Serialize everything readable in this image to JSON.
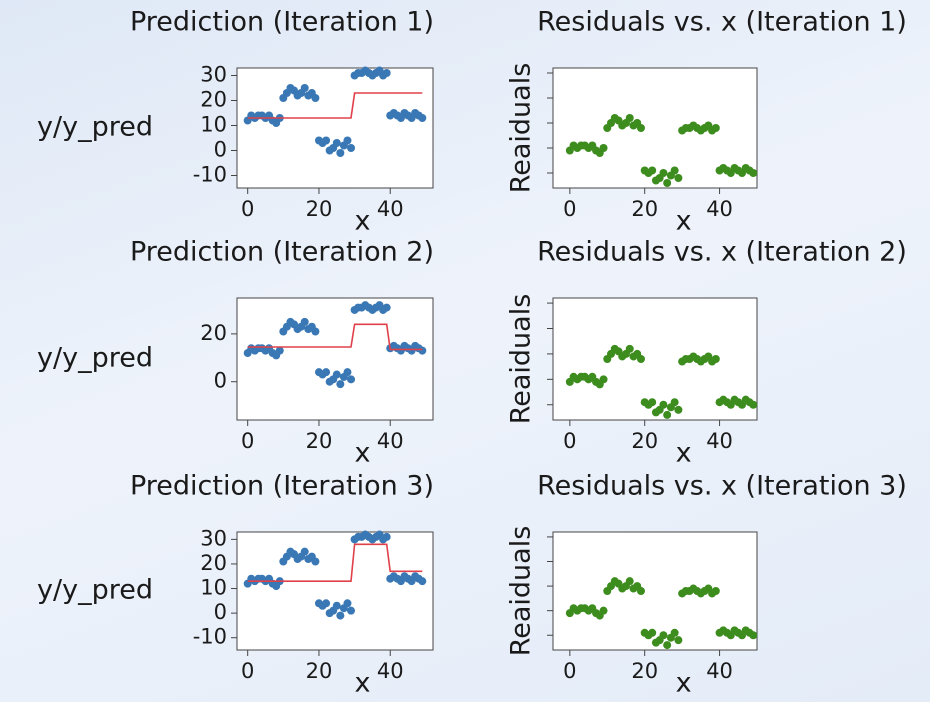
{
  "chart_data": [
    {
      "type": "scatter",
      "title": "Prediction (Iteration 1)",
      "ylabel": "y/y_pred",
      "xlabel": "x",
      "x": [
        0,
        1,
        2,
        3,
        4,
        5,
        6,
        7,
        8,
        9,
        10,
        11,
        12,
        13,
        14,
        15,
        16,
        17,
        18,
        19,
        20,
        21,
        22,
        23,
        24,
        25,
        26,
        27,
        28,
        29,
        30,
        31,
        32,
        33,
        34,
        35,
        36,
        37,
        38,
        39,
        40,
        41,
        42,
        43,
        44,
        45,
        46,
        47,
        48,
        49
      ],
      "series": [
        {
          "style": "points",
          "color": "#3a78b5",
          "values": [
            12,
            14,
            13,
            14,
            14,
            13,
            14,
            12,
            11,
            13,
            21,
            23,
            25,
            24,
            22,
            23,
            25,
            22,
            23,
            21,
            4,
            3,
            4,
            0,
            1,
            3,
            -1,
            2,
            4,
            1,
            30,
            31,
            31,
            32,
            31,
            30,
            31,
            32,
            30,
            31,
            14,
            15,
            14,
            13,
            15,
            14,
            13,
            15,
            14,
            13
          ]
        },
        {
          "style": "line",
          "color": "#e0404a",
          "values": [
            13,
            13,
            13,
            13,
            13,
            13,
            13,
            13,
            13,
            13,
            13,
            13,
            13,
            13,
            13,
            13,
            13,
            13,
            13,
            13,
            13,
            13,
            13,
            13,
            13,
            13,
            13,
            13,
            13,
            13,
            23,
            23,
            23,
            23,
            23,
            23,
            23,
            23,
            23,
            23,
            23,
            23,
            23,
            23,
            23,
            23,
            23,
            23,
            23,
            23
          ]
        }
      ],
      "xlim": [
        -3,
        52
      ],
      "xticks": [
        0,
        20,
        40
      ],
      "ylim": [
        -15,
        33
      ],
      "yticks": [
        -10,
        0,
        10,
        20,
        30
      ],
      "ytick_labels": true,
      "grid": false
    },
    {
      "type": "scatter",
      "title": "Residuals vs. x (Iteration 1)",
      "ylabel": "Reaiduals",
      "xlabel": "x",
      "x": [
        0,
        1,
        2,
        3,
        4,
        5,
        6,
        7,
        8,
        9,
        10,
        11,
        12,
        13,
        14,
        15,
        16,
        17,
        18,
        19,
        20,
        21,
        22,
        23,
        24,
        25,
        26,
        27,
        28,
        29,
        30,
        31,
        32,
        33,
        34,
        35,
        36,
        37,
        38,
        39,
        40,
        41,
        42,
        43,
        44,
        45,
        46,
        47,
        48,
        49
      ],
      "series": [
        {
          "style": "points",
          "color": "#3c8c1e",
          "values": [
            -1,
            1,
            0,
            1,
            1,
            0,
            1,
            -1,
            -2,
            0,
            8,
            10,
            12,
            11,
            9,
            10,
            12,
            9,
            10,
            8,
            -9,
            -10,
            -9,
            -13,
            -12,
            -10,
            -14,
            -11,
            -9,
            -12,
            7,
            8,
            8,
            9,
            8,
            7,
            8,
            9,
            7,
            8,
            -9,
            -8,
            -9,
            -10,
            -8,
            -9,
            -10,
            -8,
            -9,
            -10
          ]
        }
      ],
      "xlim": [
        -4.5,
        50
      ],
      "xticks": [
        0,
        20,
        40
      ],
      "ylim": [
        -16,
        32
      ],
      "yticks": [
        -10,
        0,
        10,
        20,
        30
      ],
      "ytick_labels": false,
      "grid": false
    },
    {
      "type": "scatter",
      "title": "Prediction (Iteration 2)",
      "ylabel": "y/y_pred",
      "xlabel": "x",
      "x": [
        0,
        1,
        2,
        3,
        4,
        5,
        6,
        7,
        8,
        9,
        10,
        11,
        12,
        13,
        14,
        15,
        16,
        17,
        18,
        19,
        20,
        21,
        22,
        23,
        24,
        25,
        26,
        27,
        28,
        29,
        30,
        31,
        32,
        33,
        34,
        35,
        36,
        37,
        38,
        39,
        40,
        41,
        42,
        43,
        44,
        45,
        46,
        47,
        48,
        49
      ],
      "series": [
        {
          "style": "points",
          "color": "#3a78b5",
          "values": [
            12,
            14,
            13,
            14,
            14,
            13,
            14,
            12,
            11,
            13,
            21,
            23,
            25,
            24,
            22,
            23,
            25,
            22,
            23,
            21,
            4,
            3,
            4,
            0,
            1,
            3,
            -1,
            2,
            4,
            1,
            30,
            31,
            31,
            32,
            31,
            30,
            31,
            32,
            30,
            31,
            14,
            15,
            14,
            13,
            15,
            14,
            13,
            15,
            14,
            13
          ]
        },
        {
          "style": "line",
          "color": "#e0404a",
          "values": [
            14.5,
            14.5,
            14.5,
            14.5,
            14.5,
            14.5,
            14.5,
            14.5,
            14.5,
            14.5,
            14.5,
            14.5,
            14.5,
            14.5,
            14.5,
            14.5,
            14.5,
            14.5,
            14.5,
            14.5,
            14.5,
            14.5,
            14.5,
            14.5,
            14.5,
            14.5,
            14.5,
            14.5,
            14.5,
            14.5,
            24,
            24,
            24,
            24,
            24,
            24,
            24,
            24,
            24,
            24,
            13.5,
            13.5,
            13.5,
            13.5,
            13.5,
            13.5,
            13.5,
            13.5,
            13.5,
            13.5
          ]
        }
      ],
      "xlim": [
        -3,
        52
      ],
      "xticks": [
        0,
        20,
        40
      ],
      "ylim": [
        -16,
        35
      ],
      "yticks": [
        0,
        20
      ],
      "ytick_labels": true,
      "grid": false
    },
    {
      "type": "scatter",
      "title": "Residuals vs. x (Iteration 2)",
      "ylabel": "Reaiduals",
      "xlabel": "x",
      "x": [
        0,
        1,
        2,
        3,
        4,
        5,
        6,
        7,
        8,
        9,
        10,
        11,
        12,
        13,
        14,
        15,
        16,
        17,
        18,
        19,
        20,
        21,
        22,
        23,
        24,
        25,
        26,
        27,
        28,
        29,
        30,
        31,
        32,
        33,
        34,
        35,
        36,
        37,
        38,
        39,
        40,
        41,
        42,
        43,
        44,
        45,
        46,
        47,
        48,
        49
      ],
      "series": [
        {
          "style": "points",
          "color": "#3c8c1e",
          "values": [
            -1,
            1,
            0,
            1,
            1,
            0,
            1,
            -1,
            -2,
            0,
            8,
            10,
            12,
            11,
            9,
            10,
            12,
            9,
            10,
            8,
            -9,
            -10,
            -9,
            -13,
            -12,
            -10,
            -14,
            -11,
            -9,
            -12,
            7,
            8,
            8,
            9,
            8,
            7,
            8,
            9,
            7,
            8,
            -9,
            -8,
            -9,
            -10,
            -8,
            -9,
            -10,
            -8,
            -9,
            -10
          ]
        }
      ],
      "xlim": [
        -4.5,
        50
      ],
      "xticks": [
        0,
        20,
        40
      ],
      "ylim": [
        -16,
        32
      ],
      "yticks": [
        -10,
        0,
        10,
        20,
        30
      ],
      "ytick_labels": false,
      "grid": false
    },
    {
      "type": "scatter",
      "title": "Prediction (Iteration 3)",
      "ylabel": "y/y_pred",
      "xlabel": "x",
      "x": [
        0,
        1,
        2,
        3,
        4,
        5,
        6,
        7,
        8,
        9,
        10,
        11,
        12,
        13,
        14,
        15,
        16,
        17,
        18,
        19,
        20,
        21,
        22,
        23,
        24,
        25,
        26,
        27,
        28,
        29,
        30,
        31,
        32,
        33,
        34,
        35,
        36,
        37,
        38,
        39,
        40,
        41,
        42,
        43,
        44,
        45,
        46,
        47,
        48,
        49
      ],
      "series": [
        {
          "style": "points",
          "color": "#3a78b5",
          "values": [
            12,
            14,
            13,
            14,
            14,
            13,
            14,
            12,
            11,
            13,
            21,
            23,
            25,
            24,
            22,
            23,
            25,
            22,
            23,
            21,
            4,
            3,
            4,
            0,
            1,
            3,
            -1,
            2,
            4,
            1,
            30,
            31,
            31,
            32,
            31,
            30,
            31,
            32,
            30,
            31,
            14,
            15,
            14,
            13,
            15,
            14,
            13,
            15,
            14,
            13
          ]
        },
        {
          "style": "line",
          "color": "#e0404a",
          "values": [
            13,
            13,
            13,
            13,
            13,
            13,
            13,
            13,
            13,
            13,
            13,
            13,
            13,
            13,
            13,
            13,
            13,
            13,
            13,
            13,
            13,
            13,
            13,
            13,
            13,
            13,
            13,
            13,
            13,
            13,
            28,
            28,
            28,
            28,
            28,
            28,
            28,
            28,
            28,
            28,
            17,
            17,
            17,
            17,
            17,
            17,
            17,
            17,
            17,
            17
          ]
        }
      ],
      "xlim": [
        -3,
        52
      ],
      "xticks": [
        0,
        20,
        40
      ],
      "ylim": [
        -15,
        33
      ],
      "yticks": [
        -10,
        0,
        10,
        20,
        30
      ],
      "ytick_labels": true,
      "grid": false
    },
    {
      "type": "scatter",
      "title": "Residuals vs. x (Iteration 3)",
      "ylabel": "Reaiduals",
      "xlabel": "x",
      "x": [
        0,
        1,
        2,
        3,
        4,
        5,
        6,
        7,
        8,
        9,
        10,
        11,
        12,
        13,
        14,
        15,
        16,
        17,
        18,
        19,
        20,
        21,
        22,
        23,
        24,
        25,
        26,
        27,
        28,
        29,
        30,
        31,
        32,
        33,
        34,
        35,
        36,
        37,
        38,
        39,
        40,
        41,
        42,
        43,
        44,
        45,
        46,
        47,
        48,
        49
      ],
      "series": [
        {
          "style": "points",
          "color": "#3c8c1e",
          "values": [
            -1,
            1,
            0,
            1,
            1,
            0,
            1,
            -1,
            -2,
            0,
            8,
            10,
            12,
            11,
            9,
            10,
            12,
            9,
            10,
            8,
            -9,
            -10,
            -9,
            -13,
            -12,
            -10,
            -14,
            -11,
            -9,
            -12,
            7,
            8,
            8,
            9,
            8,
            7,
            8,
            9,
            7,
            8,
            -9,
            -8,
            -9,
            -10,
            -8,
            -9,
            -10,
            -8,
            -9,
            -10
          ]
        }
      ],
      "xlim": [
        -4.5,
        50
      ],
      "xticks": [
        0,
        20,
        40
      ],
      "ylim": [
        -16,
        32
      ],
      "yticks": [
        -10,
        0,
        10,
        20,
        30
      ],
      "ytick_labels": false,
      "grid": false
    }
  ]
}
